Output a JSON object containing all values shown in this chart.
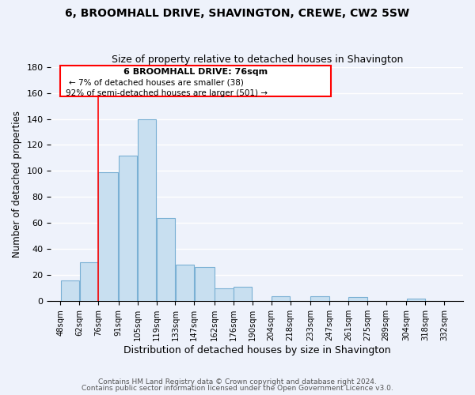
{
  "title": "6, BROOMHALL DRIVE, SHAVINGTON, CREWE, CW2 5SW",
  "subtitle": "Size of property relative to detached houses in Shavington",
  "xlabel": "Distribution of detached houses by size in Shavington",
  "ylabel": "Number of detached properties",
  "bar_left_edges": [
    48,
    62,
    76,
    91,
    105,
    119,
    133,
    147,
    162,
    176,
    190,
    204,
    218,
    233,
    247,
    261,
    275,
    289,
    304,
    318
  ],
  "bar_heights": [
    16,
    30,
    99,
    112,
    140,
    64,
    28,
    26,
    10,
    11,
    0,
    4,
    0,
    4,
    0,
    3,
    0,
    0,
    2,
    0
  ],
  "bar_widths": [
    14,
    14,
    15,
    14,
    14,
    14,
    14,
    15,
    14,
    14,
    14,
    14,
    15,
    14,
    14,
    14,
    14,
    15,
    14,
    14
  ],
  "bar_color": "#c8dff0",
  "bar_edge_color": "#7ab0d4",
  "tick_labels": [
    "48sqm",
    "62sqm",
    "76sqm",
    "91sqm",
    "105sqm",
    "119sqm",
    "133sqm",
    "147sqm",
    "162sqm",
    "176sqm",
    "190sqm",
    "204sqm",
    "218sqm",
    "233sqm",
    "247sqm",
    "261sqm",
    "275sqm",
    "289sqm",
    "304sqm",
    "318sqm",
    "332sqm"
  ],
  "tick_positions": [
    48,
    62,
    76,
    91,
    105,
    119,
    133,
    147,
    162,
    176,
    190,
    204,
    218,
    233,
    247,
    261,
    275,
    289,
    304,
    318,
    332
  ],
  "ylim": [
    0,
    180
  ],
  "xlim": [
    41,
    346
  ],
  "reference_x": 76,
  "annotation_title": "6 BROOMHALL DRIVE: 76sqm",
  "annotation_line1": "← 7% of detached houses are smaller (38)",
  "annotation_line2": "92% of semi-detached houses are larger (501) →",
  "footer_line1": "Contains HM Land Registry data © Crown copyright and database right 2024.",
  "footer_line2": "Contains public sector information licensed under the Open Government Licence v3.0.",
  "bg_color": "#eef2fb",
  "grid_color": "#ffffff",
  "title_fontsize": 10,
  "subtitle_fontsize": 9
}
